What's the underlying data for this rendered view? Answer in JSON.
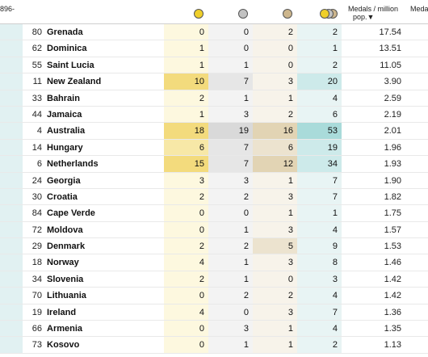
{
  "header": {
    "cut_label": "896-",
    "per_million_label_line1": "Medals / million",
    "per_million_label_line2": "pop.▼",
    "right_cut_label": "Meda"
  },
  "colors": {
    "gold_scale": [
      "#fdf8df",
      "#f7e8a7",
      "#f3db7d"
    ],
    "silver_scale": [
      "#f3f3f3",
      "#e6e6e6",
      "#d9d9d9"
    ],
    "bronze_scale": [
      "#f7f3ea",
      "#ece3cf",
      "#e2d4b4"
    ],
    "total_scale": [
      "#e8f4f4",
      "#cdeaea",
      "#a9dbda"
    ]
  },
  "rows": [
    {
      "rank": "80",
      "country": "Grenada",
      "gold": 0,
      "silver": 0,
      "bronze": 2,
      "total": 2,
      "per_million": "17.54"
    },
    {
      "rank": "62",
      "country": "Dominica",
      "gold": 1,
      "silver": 0,
      "bronze": 0,
      "total": 1,
      "per_million": "13.51"
    },
    {
      "rank": "55",
      "country": "Saint Lucia",
      "gold": 1,
      "silver": 1,
      "bronze": 0,
      "total": 2,
      "per_million": "11.05"
    },
    {
      "rank": "11",
      "country": "New Zealand",
      "gold": 10,
      "silver": 7,
      "bronze": 3,
      "total": 20,
      "per_million": "3.90"
    },
    {
      "rank": "33",
      "country": "Bahrain",
      "gold": 2,
      "silver": 1,
      "bronze": 1,
      "total": 4,
      "per_million": "2.59"
    },
    {
      "rank": "44",
      "country": "Jamaica",
      "gold": 1,
      "silver": 3,
      "bronze": 2,
      "total": 6,
      "per_million": "2.19"
    },
    {
      "rank": "4",
      "country": "Australia",
      "gold": 18,
      "silver": 19,
      "bronze": 16,
      "total": 53,
      "per_million": "2.01"
    },
    {
      "rank": "14",
      "country": "Hungary",
      "gold": 6,
      "silver": 7,
      "bronze": 6,
      "total": 19,
      "per_million": "1.96"
    },
    {
      "rank": "6",
      "country": "Netherlands",
      "gold": 15,
      "silver": 7,
      "bronze": 12,
      "total": 34,
      "per_million": "1.93"
    },
    {
      "rank": "24",
      "country": "Georgia",
      "gold": 3,
      "silver": 3,
      "bronze": 1,
      "total": 7,
      "per_million": "1.90"
    },
    {
      "rank": "30",
      "country": "Croatia",
      "gold": 2,
      "silver": 2,
      "bronze": 3,
      "total": 7,
      "per_million": "1.82"
    },
    {
      "rank": "84",
      "country": "Cape Verde",
      "gold": 0,
      "silver": 0,
      "bronze": 1,
      "total": 1,
      "per_million": "1.75"
    },
    {
      "rank": "72",
      "country": "Moldova",
      "gold": 0,
      "silver": 1,
      "bronze": 3,
      "total": 4,
      "per_million": "1.57"
    },
    {
      "rank": "29",
      "country": "Denmark",
      "gold": 2,
      "silver": 2,
      "bronze": 5,
      "total": 9,
      "per_million": "1.53"
    },
    {
      "rank": "18",
      "country": "Norway",
      "gold": 4,
      "silver": 1,
      "bronze": 3,
      "total": 8,
      "per_million": "1.46"
    },
    {
      "rank": "34",
      "country": "Slovenia",
      "gold": 2,
      "silver": 1,
      "bronze": 0,
      "total": 3,
      "per_million": "1.42"
    },
    {
      "rank": "70",
      "country": "Lithuania",
      "gold": 0,
      "silver": 2,
      "bronze": 2,
      "total": 4,
      "per_million": "1.42"
    },
    {
      "rank": "19",
      "country": "Ireland",
      "gold": 4,
      "silver": 0,
      "bronze": 3,
      "total": 7,
      "per_million": "1.36"
    },
    {
      "rank": "66",
      "country": "Armenia",
      "gold": 0,
      "silver": 3,
      "bronze": 1,
      "total": 4,
      "per_million": "1.35"
    },
    {
      "rank": "73",
      "country": "Kosovo",
      "gold": 0,
      "silver": 1,
      "bronze": 1,
      "total": 2,
      "per_million": "1.13"
    }
  ]
}
